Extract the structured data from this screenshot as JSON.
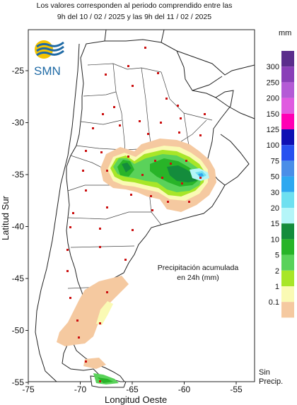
{
  "caption": {
    "line1": "Los valores corresponden al periodo comprendido entre las",
    "line2": "9h del 10 / 02 / 2025  y las 9h del 11 / 02 / 2025"
  },
  "logo": {
    "text": "SMN"
  },
  "axes": {
    "x_title": "Longitud Oeste",
    "y_title": "Latitud Sur",
    "x_ticks": [
      "-75",
      "-70",
      "-65",
      "-60",
      "-55"
    ],
    "y_ticks": [
      "-25",
      "-30",
      "-35",
      "-40",
      "-45",
      "-50",
      "-55"
    ]
  },
  "note": {
    "line1": "Precipitación acumulada",
    "line2": "en 24h (mm)"
  },
  "legend": {
    "unit": "mm",
    "no_precip_line1": "Sin",
    "no_precip_line2": "Precip.",
    "levels": [
      {
        "label": "300",
        "color": "#5b2d8c"
      },
      {
        "label": "250",
        "color": "#8a3fb8"
      },
      {
        "label": "200",
        "color": "#b45ad6"
      },
      {
        "label": "150",
        "color": "#e05ae0"
      },
      {
        "label": "125",
        "color": "#ff00b4"
      },
      {
        "label": "100",
        "color": "#0f0fb4"
      },
      {
        "label": "75",
        "color": "#2850f0"
      },
      {
        "label": "50",
        "color": "#4a8ee8"
      },
      {
        "label": "30",
        "color": "#2ea8f0"
      },
      {
        "label": "20",
        "color": "#6ee0f0"
      },
      {
        "label": "15",
        "color": "#b4f5f8"
      },
      {
        "label": "10",
        "color": "#148c3c"
      },
      {
        "label": "5",
        "color": "#28b428"
      },
      {
        "label": "2",
        "color": "#5ad25a"
      },
      {
        "label": "1",
        "color": "#a8e628"
      },
      {
        "label": "0.1",
        "color": "#fafab4"
      }
    ],
    "no_precip_color": "#f5c9a0"
  }
}
